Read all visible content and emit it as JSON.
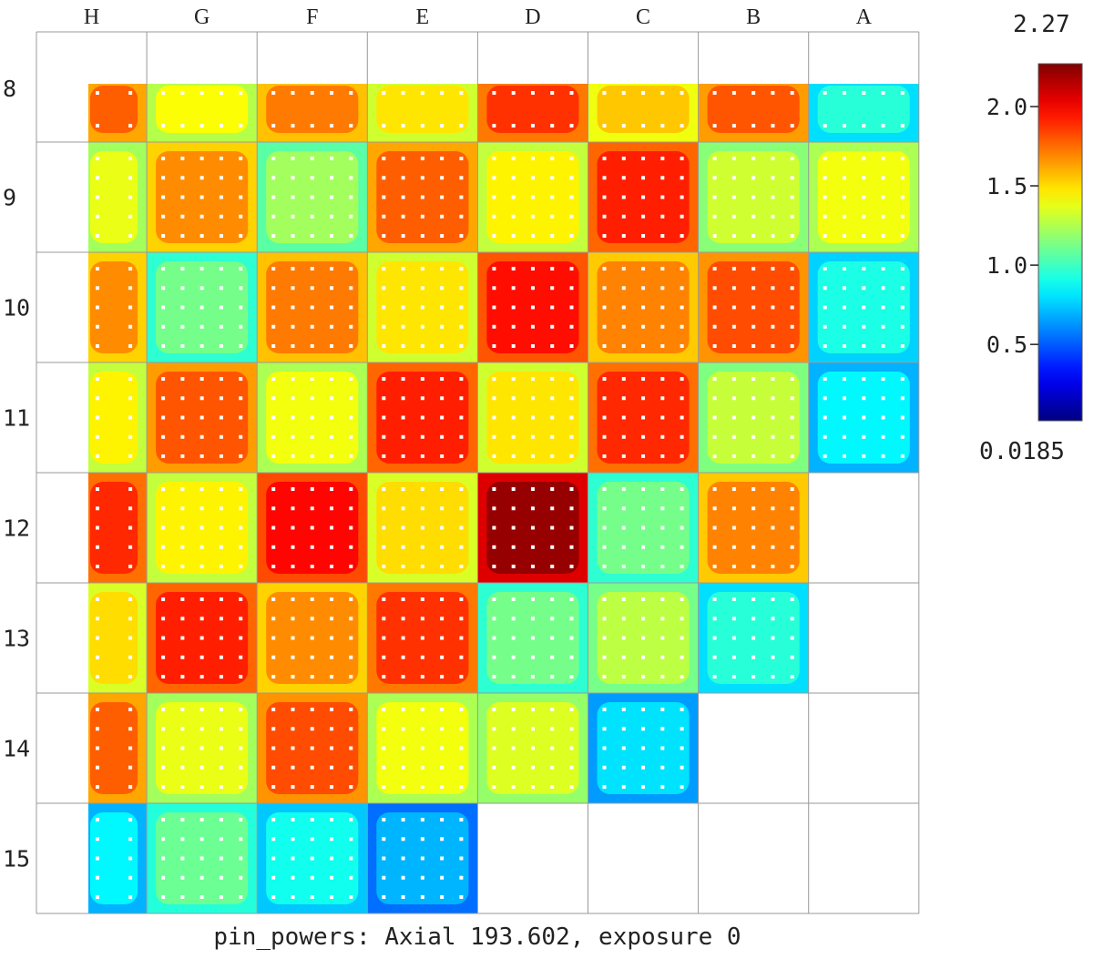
{
  "chart_data": {
    "type": "heatmap",
    "title": "pin_powers: Axial 193.602, exposure 0",
    "column_labels": [
      "H",
      "G",
      "F",
      "E",
      "D",
      "C",
      "B",
      "A"
    ],
    "row_labels": [
      "8",
      "9",
      "10",
      "11",
      "12",
      "13",
      "14",
      "15"
    ],
    "assembly_powers": [
      [
        1.78,
        1.42,
        1.72,
        1.48,
        1.88,
        1.55,
        1.8,
        0.95
      ],
      [
        1.38,
        1.68,
        1.22,
        1.78,
        1.45,
        1.92,
        1.32,
        1.4
      ],
      [
        1.68,
        1.12,
        1.72,
        1.48,
        1.96,
        1.7,
        1.82,
        0.92
      ],
      [
        1.45,
        1.8,
        1.4,
        1.92,
        1.48,
        1.9,
        1.3,
        0.85
      ],
      [
        1.9,
        1.45,
        1.98,
        1.5,
        2.22,
        1.12,
        1.7,
        null
      ],
      [
        1.5,
        1.92,
        1.68,
        1.88,
        1.12,
        1.28,
        0.95,
        null
      ],
      [
        1.78,
        1.38,
        1.82,
        1.4,
        1.35,
        0.8,
        null,
        null
      ],
      [
        0.85,
        1.1,
        0.9,
        0.7,
        null,
        null,
        null,
        null
      ]
    ],
    "colorbar": {
      "colormap": "jet",
      "min": 0.0185,
      "max": 2.27,
      "min_label": "0.0185",
      "max_label": "2.27",
      "ticks": [
        0.5,
        1.0,
        1.5,
        2.0
      ],
      "tick_labels": [
        "0.5",
        "1.0",
        "1.5",
        "2.0"
      ]
    }
  }
}
